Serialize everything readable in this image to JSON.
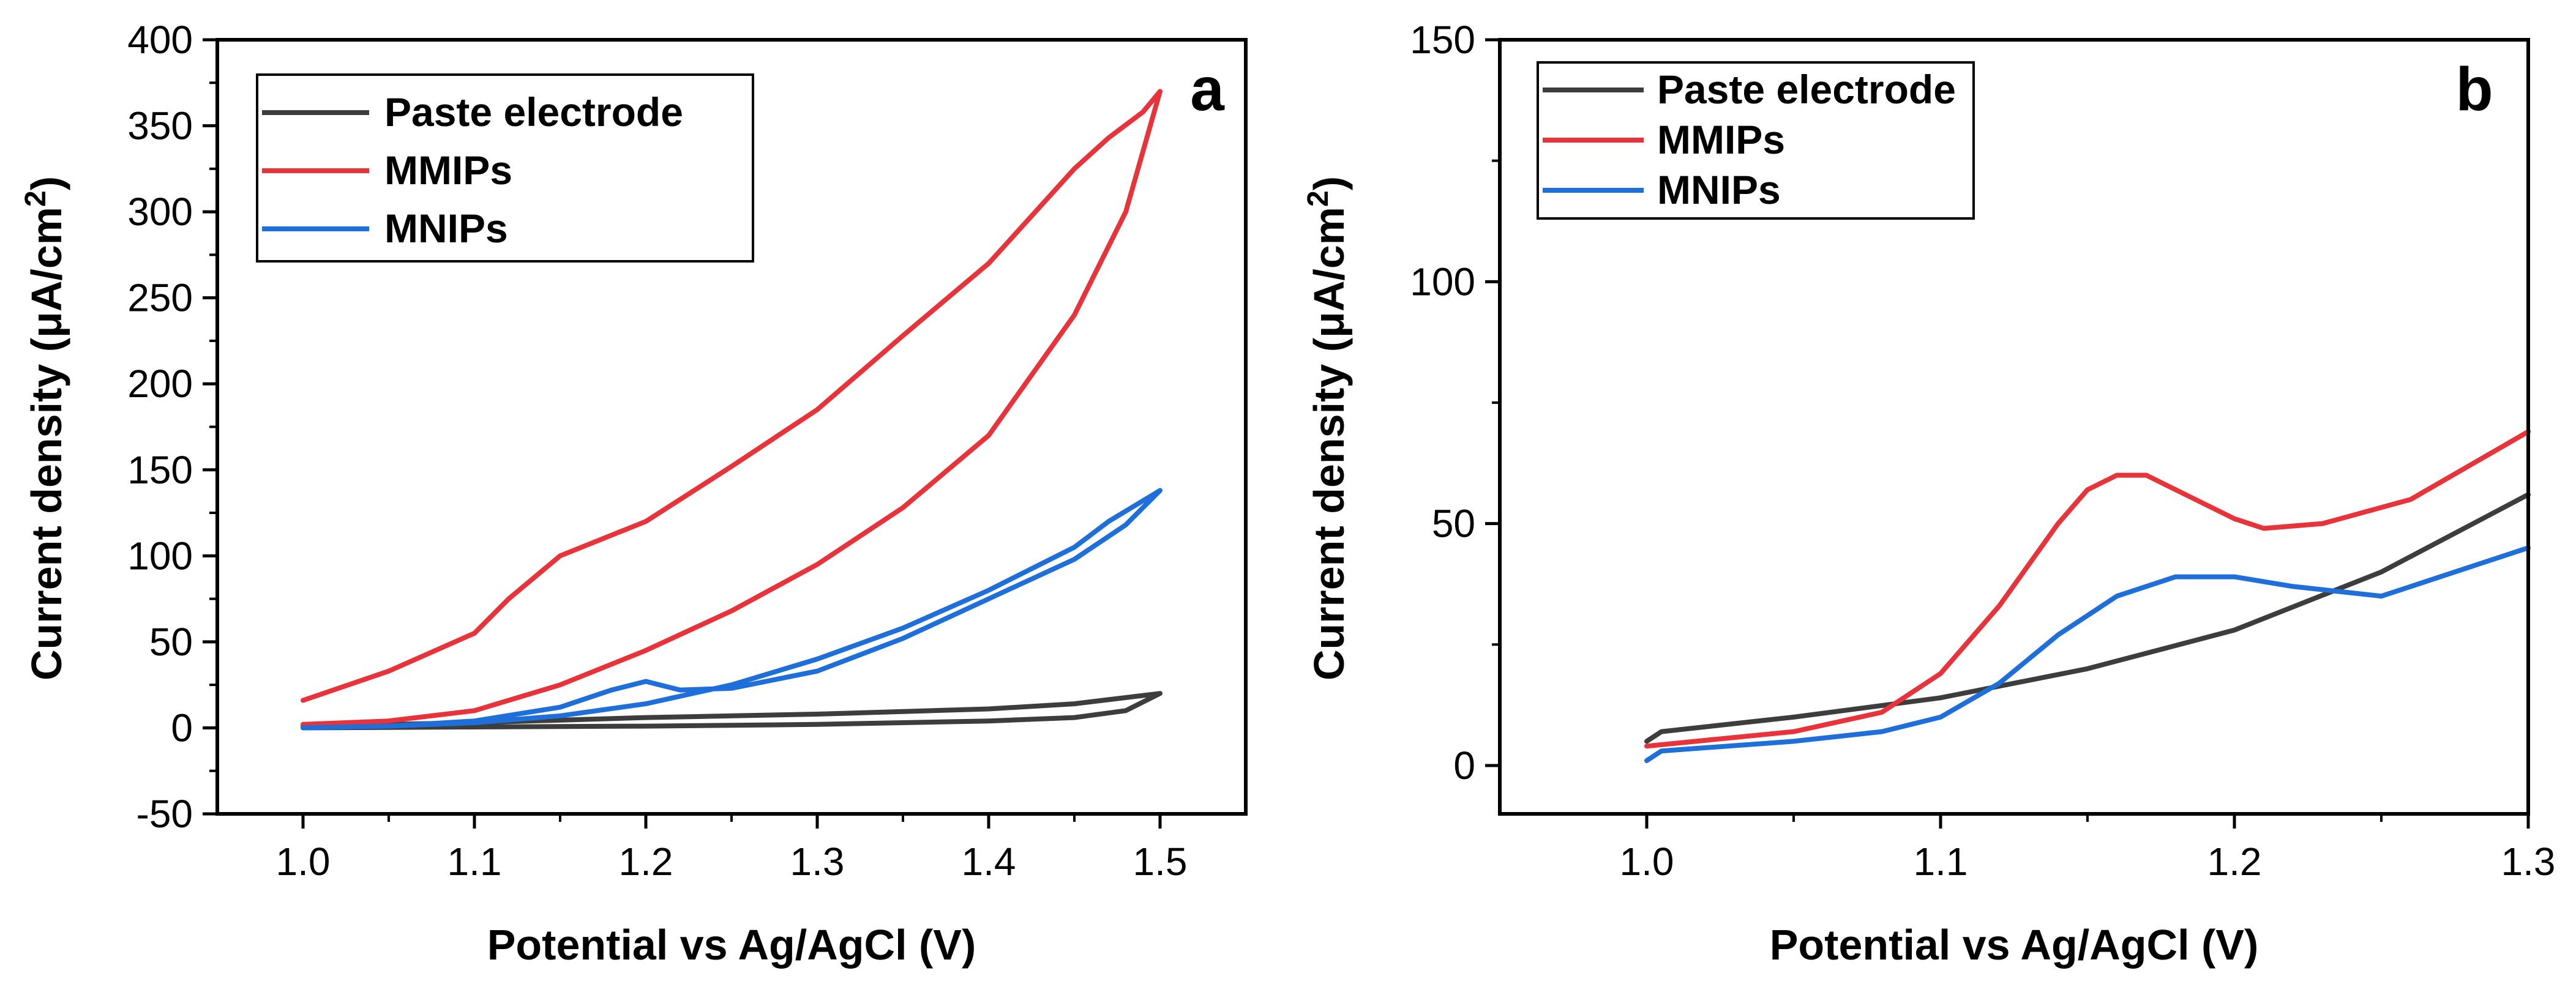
{
  "chart_data": [
    {
      "type": "line",
      "panel_letter": "a",
      "xlabel": "Potential vs Ag/AgCl (V)",
      "ylabel_main": "Current density (μA/cm",
      "ylabel_sup": "2",
      "ylabel_end": ")",
      "xlim": [
        0.95,
        1.55
      ],
      "ylim": [
        -50,
        400
      ],
      "xticks": [
        1.0,
        1.1,
        1.2,
        1.3,
        1.4,
        1.5
      ],
      "xtick_labels": [
        "1.0",
        "1.1",
        "1.2",
        "1.3",
        "1.4",
        "1.5"
      ],
      "yticks": [
        -50,
        0,
        50,
        100,
        150,
        200,
        250,
        300,
        350,
        400
      ],
      "ytick_labels": [
        "-50",
        "0",
        "50",
        "100",
        "150",
        "200",
        "250",
        "300",
        "350",
        "400"
      ],
      "legend_position": "top-left",
      "series": [
        {
          "name": "Paste electrode",
          "color": "#3d3d3d",
          "x": [
            1.0,
            1.1,
            1.2,
            1.3,
            1.4,
            1.45,
            1.48,
            1.5,
            1.45,
            1.4,
            1.3,
            1.2,
            1.1,
            1.0
          ],
          "y": [
            0,
            0.5,
            1,
            2,
            4,
            6,
            10,
            20,
            14,
            11,
            8,
            6,
            3,
            1
          ]
        },
        {
          "name": "MMIPs",
          "color": "#e8333a",
          "x": [
            1.0,
            1.05,
            1.1,
            1.15,
            1.2,
            1.25,
            1.3,
            1.35,
            1.4,
            1.45,
            1.48,
            1.5,
            1.49,
            1.47,
            1.45,
            1.4,
            1.35,
            1.3,
            1.25,
            1.2,
            1.15,
            1.12,
            1.1,
            1.05,
            1.0
          ],
          "y": [
            2,
            4,
            10,
            25,
            45,
            68,
            95,
            128,
            170,
            240,
            300,
            370,
            358,
            343,
            325,
            270,
            228,
            185,
            152,
            120,
            100,
            75,
            55,
            33,
            16
          ]
        },
        {
          "name": "MNIPs",
          "color": "#1e6fd9",
          "x": [
            1.0,
            1.05,
            1.1,
            1.15,
            1.18,
            1.2,
            1.22,
            1.25,
            1.3,
            1.35,
            1.4,
            1.45,
            1.48,
            1.5,
            1.47,
            1.45,
            1.4,
            1.35,
            1.3,
            1.25,
            1.2,
            1.15,
            1.1,
            1.05,
            1.0
          ],
          "y": [
            0,
            1,
            4,
            12,
            22,
            27,
            22,
            23,
            33,
            52,
            75,
            98,
            118,
            138,
            120,
            105,
            80,
            58,
            40,
            25,
            14,
            7,
            3,
            1,
            0
          ]
        }
      ]
    },
    {
      "type": "line",
      "panel_letter": "b",
      "xlabel": "Potential vs Ag/AgCl (V)",
      "ylabel_main": "Current density (μA/cm",
      "ylabel_sup": "2",
      "ylabel_end": ")",
      "xlim": [
        0.95,
        1.3
      ],
      "ylim": [
        -10,
        150
      ],
      "xticks": [
        1.0,
        1.1,
        1.2,
        1.3
      ],
      "xtick_labels": [
        "1.0",
        "1.1",
        "1.2",
        "1.3"
      ],
      "yticks": [
        0,
        50,
        100,
        150
      ],
      "ytick_labels": [
        "0",
        "50",
        "100",
        "150"
      ],
      "legend_position": "top-left",
      "series": [
        {
          "name": "Paste electrode",
          "color": "#3d3d3d",
          "x": [
            1.0,
            1.005,
            1.05,
            1.1,
            1.15,
            1.2,
            1.25,
            1.3
          ],
          "y": [
            5,
            7,
            10,
            14,
            20,
            28,
            40,
            56
          ]
        },
        {
          "name": "MMIPs",
          "color": "#e8333a",
          "x": [
            1.0,
            1.05,
            1.08,
            1.1,
            1.12,
            1.14,
            1.15,
            1.16,
            1.17,
            1.18,
            1.2,
            1.21,
            1.23,
            1.26,
            1.3
          ],
          "y": [
            4,
            7,
            11,
            19,
            33,
            50,
            57,
            60,
            60,
            57,
            51,
            49,
            50,
            55,
            69
          ]
        },
        {
          "name": "MNIPs",
          "color": "#1e6fd9",
          "x": [
            1.0,
            1.005,
            1.05,
            1.08,
            1.1,
            1.12,
            1.14,
            1.16,
            1.18,
            1.2,
            1.22,
            1.25,
            1.3
          ],
          "y": [
            1,
            3,
            5,
            7,
            10,
            17,
            27,
            35,
            39,
            39,
            37,
            35,
            45
          ]
        }
      ]
    }
  ]
}
